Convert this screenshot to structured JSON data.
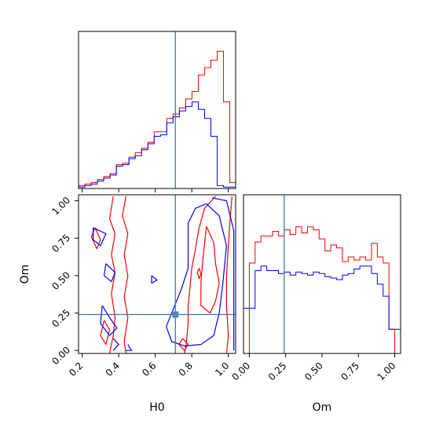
{
  "chart_data": [
    {
      "panel": "H0 marginal",
      "type": "histogram",
      "truth_x": 0.71,
      "xlim": [
        0.18,
        1.04
      ],
      "x_ticks": [
        0.2,
        0.4,
        0.6,
        0.8,
        1.0
      ],
      "bin_edges": [
        0.18,
        0.2145,
        0.249,
        0.2835,
        0.318,
        0.3525,
        0.387,
        0.4215,
        0.456,
        0.4905,
        0.525,
        0.5595,
        0.594,
        0.6285,
        0.663,
        0.6975,
        0.732,
        0.7665,
        0.801,
        0.8355,
        0.87,
        0.9045,
        0.939,
        0.9735,
        1.008,
        1.04
      ],
      "series": [
        {
          "color": "#ff0000",
          "values": [
            0.02,
            0.03,
            0.04,
            0.06,
            0.08,
            0.1,
            0.16,
            0.17,
            0.21,
            0.24,
            0.27,
            0.31,
            0.38,
            0.38,
            0.47,
            0.5,
            0.54,
            0.6,
            0.65,
            0.76,
            0.81,
            0.86,
            0.92,
            0.58,
            0.04
          ]
        },
        {
          "color": "#0000ff",
          "values": [
            0.01,
            0.02,
            0.03,
            0.05,
            0.07,
            0.09,
            0.15,
            0.16,
            0.2,
            0.22,
            0.26,
            0.3,
            0.35,
            0.36,
            0.44,
            0.48,
            0.52,
            0.55,
            0.58,
            0.53,
            0.47,
            0.35,
            0.02,
            0.01,
            0.01
          ]
        }
      ]
    },
    {
      "panel": "Om marginal",
      "type": "histogram",
      "truth_x": 0.24,
      "xlim": [
        -0.04,
        1.04
      ],
      "x_ticks": [
        0.0,
        0.25,
        0.5,
        0.75,
        1.0
      ],
      "x_tick_labels": [
        "0.00",
        "0.25",
        "0.50",
        "0.75",
        "1.00"
      ],
      "xlabel": "Om",
      "bin_edges": [
        -0.04,
        0.0,
        0.04,
        0.08,
        0.12,
        0.16,
        0.2,
        0.24,
        0.28,
        0.32,
        0.36,
        0.4,
        0.44,
        0.48,
        0.52,
        0.56,
        0.6,
        0.64,
        0.68,
        0.72,
        0.76,
        0.8,
        0.84,
        0.88,
        0.92,
        0.96,
        1.0,
        1.04
      ],
      "series": [
        {
          "color": "#ff0000",
          "values": [
            0.0,
            0.6,
            0.74,
            0.78,
            0.78,
            0.81,
            0.78,
            0.82,
            0.79,
            0.84,
            0.8,
            0.84,
            0.82,
            0.76,
            0.68,
            0.72,
            0.7,
            0.61,
            0.64,
            0.62,
            0.64,
            0.62,
            0.73,
            0.64,
            0.6,
            0.16,
            0.0
          ]
        },
        {
          "color": "#0000ff",
          "values": [
            0.3,
            0.3,
            0.55,
            0.58,
            0.55,
            0.55,
            0.53,
            0.54,
            0.52,
            0.54,
            0.53,
            0.52,
            0.54,
            0.53,
            0.51,
            0.5,
            0.49,
            0.52,
            0.53,
            0.56,
            0.58,
            0.58,
            0.53,
            0.46,
            0.38,
            0.16,
            0.16
          ]
        }
      ]
    },
    {
      "panel": "H0 vs Om",
      "type": "contour",
      "xlabel": "H0",
      "ylabel": "Om",
      "xlim": [
        0.18,
        1.04
      ],
      "ylim": [
        -0.02,
        1.04
      ],
      "x_ticks": [
        0.2,
        0.4,
        0.6,
        0.8,
        1.0
      ],
      "y_ticks": [
        0.0,
        0.25,
        0.5,
        0.75,
        1.0
      ],
      "y_tick_labels": [
        "0.00",
        "0.25",
        "0.50",
        "0.75",
        "1.00"
      ],
      "truth": [
        0.71,
        0.24
      ],
      "truth_marker_color": "#4a8ab5",
      "truth_line_color": "#2f6fa8",
      "series": [
        {
          "color": "#ff0000",
          "contours": [
            [
              [
                0.93,
                1.03
              ],
              [
                0.87,
                0.95
              ],
              [
                0.84,
                0.82
              ],
              [
                0.82,
                0.68
              ],
              [
                0.8,
                0.55
              ],
              [
                0.79,
                0.42
              ],
              [
                0.78,
                0.3
              ],
              [
                0.78,
                0.18
              ],
              [
                0.77,
                0.05
              ],
              [
                0.76,
                -0.02
              ]
            ],
            [
              [
                1.02,
                1.03
              ],
              [
                1.01,
                0.88
              ],
              [
                1.0,
                0.7
              ],
              [
                0.99,
                0.5
              ],
              [
                0.99,
                0.3
              ],
              [
                1.0,
                0.1
              ],
              [
                0.99,
                -0.02
              ]
            ],
            [
              [
                0.88,
                0.83
              ],
              [
                0.92,
                0.72
              ],
              [
                0.93,
                0.58
              ],
              [
                0.95,
                0.45
              ],
              [
                0.93,
                0.33
              ],
              [
                0.9,
                0.25
              ],
              [
                0.85,
                0.3
              ],
              [
                0.85,
                0.45
              ],
              [
                0.86,
                0.6
              ],
              [
                0.88,
                0.83
              ]
            ],
            [
              [
                0.37,
                1.03
              ],
              [
                0.35,
                0.88
              ],
              [
                0.38,
                0.78
              ],
              [
                0.36,
                0.64
              ],
              [
                0.38,
                0.52
              ],
              [
                0.36,
                0.38
              ],
              [
                0.38,
                0.22
              ],
              [
                0.37,
                0.1
              ],
              [
                0.35,
                -0.02
              ]
            ],
            [
              [
                0.44,
                1.03
              ],
              [
                0.42,
                0.9
              ],
              [
                0.45,
                0.78
              ],
              [
                0.43,
                0.64
              ],
              [
                0.45,
                0.5
              ],
              [
                0.43,
                0.36
              ],
              [
                0.45,
                0.22
              ],
              [
                0.43,
                0.06
              ],
              [
                0.44,
                -0.02
              ]
            ],
            [
              [
                0.32,
                0.2
              ],
              [
                0.35,
                0.14
              ],
              [
                0.33,
                0.04
              ],
              [
                0.3,
                0.1
              ],
              [
                0.32,
                0.2
              ]
            ],
            [
              [
                0.27,
                0.82
              ],
              [
                0.3,
                0.74
              ],
              [
                0.28,
                0.68
              ],
              [
                0.25,
                0.76
              ],
              [
                0.27,
                0.82
              ]
            ],
            [
              [
                0.75,
                0.08
              ],
              [
                0.78,
                0.04
              ],
              [
                0.76,
                0.0
              ],
              [
                0.73,
                0.04
              ],
              [
                0.75,
                0.08
              ]
            ],
            [
              [
                0.84,
                0.55
              ],
              [
                0.85,
                0.51
              ],
              [
                0.84,
                0.48
              ],
              [
                0.83,
                0.52
              ],
              [
                0.84,
                0.55
              ]
            ]
          ]
        },
        {
          "color": "#0000ff",
          "contours": [
            [
              [
                0.88,
                0.98
              ],
              [
                0.95,
                0.9
              ],
              [
                0.99,
                0.7
              ],
              [
                0.97,
                0.45
              ],
              [
                0.95,
                0.25
              ],
              [
                0.92,
                0.1
              ],
              [
                0.85,
                0.04
              ],
              [
                0.76,
                0.03
              ],
              [
                0.69,
                0.06
              ],
              [
                0.66,
                0.16
              ],
              [
                0.7,
                0.28
              ],
              [
                0.74,
                0.4
              ],
              [
                0.78,
                0.55
              ],
              [
                0.78,
                0.7
              ],
              [
                0.78,
                0.85
              ],
              [
                0.82,
                0.95
              ],
              [
                0.88,
                0.98
              ]
            ],
            [
              [
                0.91,
                1.02
              ],
              [
                0.99,
                1.0
              ],
              [
                1.03,
                0.8
              ],
              [
                1.03,
                0.5
              ],
              [
                1.03,
                0.2
              ],
              [
                1.03,
                0.0
              ]
            ],
            [
              [
                0.33,
                0.58
              ],
              [
                0.38,
                0.52
              ],
              [
                0.36,
                0.46
              ],
              [
                0.32,
                0.5
              ],
              [
                0.33,
                0.58
              ]
            ],
            [
              [
                0.31,
                0.3
              ],
              [
                0.35,
                0.22
              ],
              [
                0.39,
                0.15
              ],
              [
                0.35,
                0.1
              ],
              [
                0.3,
                0.18
              ],
              [
                0.31,
                0.3
              ]
            ],
            [
              [
                0.26,
                0.82
              ],
              [
                0.33,
                0.78
              ],
              [
                0.3,
                0.7
              ],
              [
                0.26,
                0.74
              ],
              [
                0.26,
                0.82
              ]
            ],
            [
              [
                0.37,
                0.08
              ],
              [
                0.4,
                0.04
              ],
              [
                0.37,
                0.0
              ]
            ],
            [
              [
                0.45,
                0.04
              ],
              [
                0.47,
                0.0
              ],
              [
                0.44,
                0.0
              ]
            ],
            [
              [
                0.58,
                0.5
              ],
              [
                0.61,
                0.47
              ],
              [
                0.58,
                0.45
              ],
              [
                0.58,
                0.5
              ]
            ]
          ]
        }
      ]
    }
  ]
}
